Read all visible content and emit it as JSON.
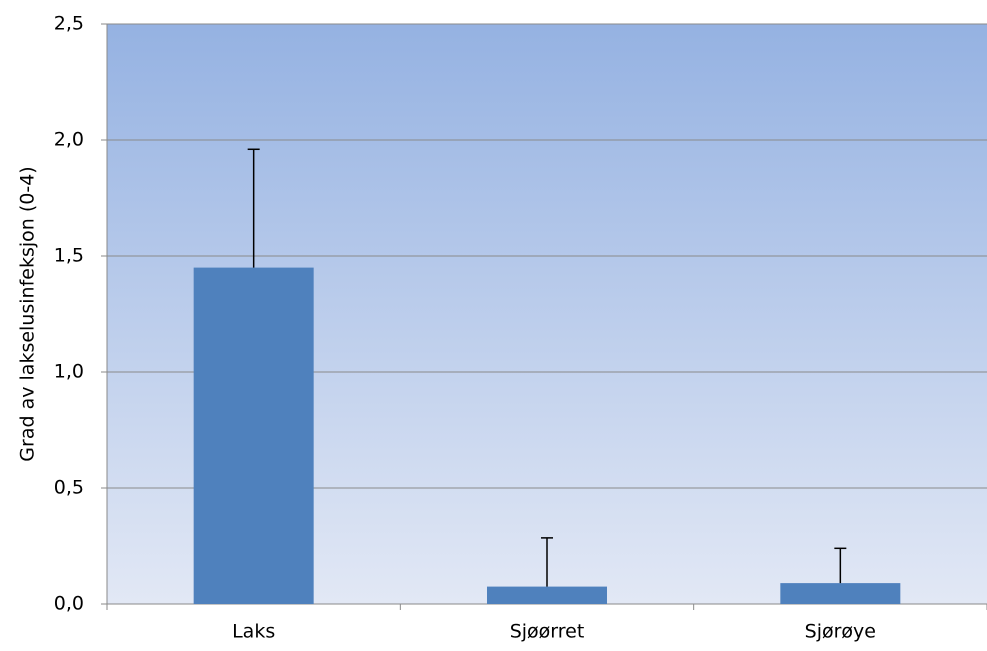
{
  "chart_data": {
    "type": "bar",
    "y_label": "Grad av lakselusinfeksjon (0-4)",
    "categories": [
      "Laks",
      "Sjøørret",
      "Sjørøye"
    ],
    "values": [
      1.45,
      0.075,
      0.09
    ],
    "errors": [
      0.51,
      0.21,
      0.15
    ],
    "color": "#4f81bd",
    "ylim": [
      0,
      2.5
    ],
    "yticks": [
      {
        "value": 0,
        "label": "0,0"
      },
      {
        "value": 0.5,
        "label": "0,5"
      },
      {
        "value": 1,
        "label": "1,0"
      },
      {
        "value": 1.5,
        "label": "1,5"
      },
      {
        "value": 2,
        "label": "2,0"
      },
      {
        "value": 2.5,
        "label": "2,5"
      }
    ],
    "grid": true
  }
}
